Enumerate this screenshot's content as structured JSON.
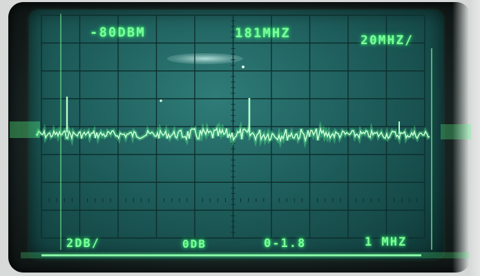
{
  "display": {
    "ref_level": "-80DBM",
    "center_freq": "181MHZ",
    "span_per_div": "20MHZ/",
    "scale_per_div": "2DB/",
    "attenuation": "0DB",
    "bandwidth": "0-1.8",
    "resolution": "1 MHZ"
  },
  "colors": {
    "trace": "#7dff9a",
    "graticule": "#0d2e2d",
    "screen": "#1e5e5c"
  }
}
